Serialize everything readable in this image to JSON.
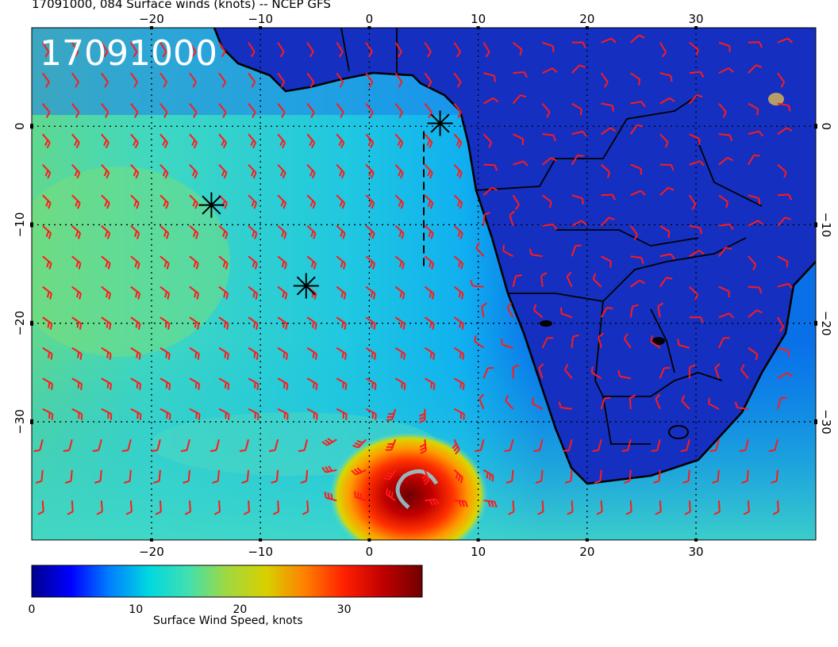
{
  "header": {
    "title": "17091000, 084 Surface winds (knots) -- NCEP GFS"
  },
  "map": {
    "stamp": "17091000",
    "lon_range": [
      -31,
      41
    ],
    "lat_range": [
      -42,
      10
    ],
    "lon_ticks": [
      -20,
      -10,
      0,
      10,
      20,
      30
    ],
    "lat_ticks": [
      0,
      -10,
      -20,
      -30
    ],
    "lon_tick_labels": [
      "−20",
      "−10",
      "0",
      "10",
      "20",
      "30"
    ],
    "lat_tick_labels": [
      "0",
      "−10",
      "−20",
      "−30"
    ],
    "grid_lines": true,
    "storm_center": {
      "lon": 3.5,
      "lat": -37.5
    },
    "markers": [
      {
        "name": "marker-1",
        "lon": 6.5,
        "lat": 0.3
      },
      {
        "name": "marker-2",
        "lon": -14.5,
        "lat": -8.0
      },
      {
        "name": "marker-3",
        "lon": -5.8,
        "lat": -16.2
      }
    ],
    "dashed_track": [
      [
        5.0,
        -0.5
      ],
      [
        5.0,
        -14.5
      ]
    ]
  },
  "colorbar": {
    "title": "Surface Wind Speed, knots",
    "range": [
      0,
      37.5
    ],
    "ticks": [
      0,
      10,
      20,
      30
    ],
    "tick_labels": [
      "0",
      "10",
      "20",
      "30"
    ],
    "colors": [
      "#00008f",
      "#0000ff",
      "#0080ff",
      "#00d8e0",
      "#40e0b0",
      "#a0d840",
      "#d8d000",
      "#ff8000",
      "#ff2000",
      "#c00000",
      "#700000"
    ]
  },
  "colors": {
    "barb": "#ff1a1a",
    "coast": "#000000",
    "land": "#1230c8"
  }
}
